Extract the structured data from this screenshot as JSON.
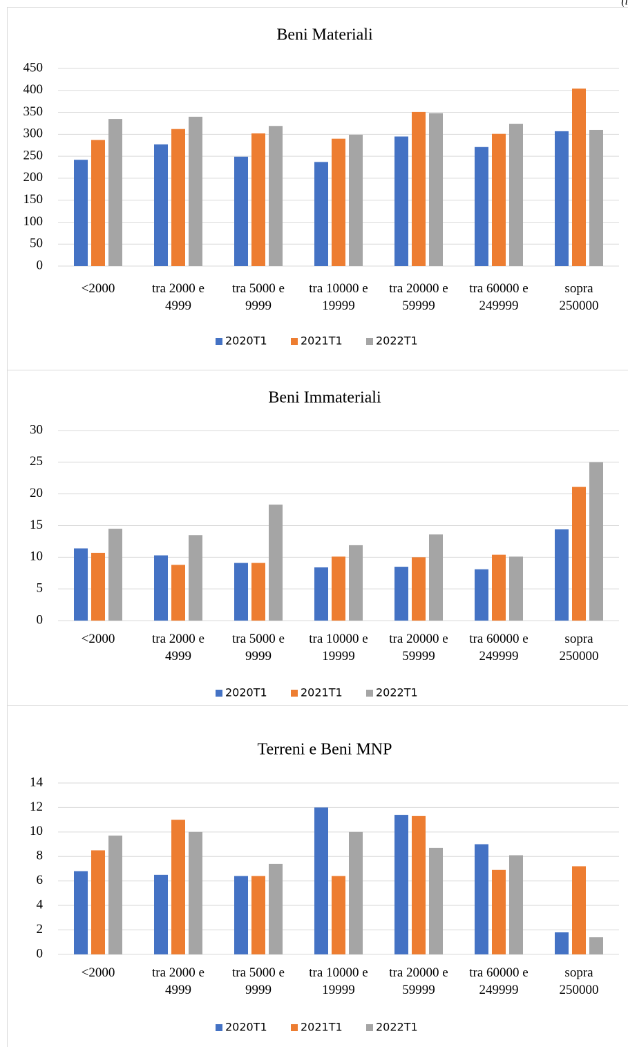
{
  "corner_text": "(i",
  "chart_data": [
    {
      "type": "bar",
      "title": "Beni Materiali",
      "categories": [
        "<2000",
        "tra 2000 e\n4999",
        "tra 5000 e\n9999",
        "tra 10000 e\n19999",
        "tra 20000 e\n59999",
        "tra 60000 e\n249999",
        "sopra\n250000"
      ],
      "series": [
        {
          "name": "2020T1",
          "color": "#4472c4",
          "values": [
            242,
            277,
            249,
            237,
            295,
            271,
            307
          ]
        },
        {
          "name": "2021T1",
          "color": "#ed7d31",
          "values": [
            287,
            312,
            302,
            290,
            351,
            301,
            404
          ]
        },
        {
          "name": "2022T1",
          "color": "#a5a5a5",
          "values": [
            335,
            340,
            319,
            299,
            348,
            324,
            310
          ]
        }
      ],
      "ylim": [
        0,
        450
      ],
      "yticks": [
        0,
        50,
        100,
        150,
        200,
        250,
        300,
        350,
        400,
        450
      ],
      "grid": true,
      "legend": "bottom"
    },
    {
      "type": "bar",
      "title": "Beni Immateriali",
      "categories": [
        "<2000",
        "tra 2000 e\n4999",
        "tra 5000 e\n9999",
        "tra 10000 e\n19999",
        "tra 20000 e\n59999",
        "tra 60000 e\n249999",
        "sopra\n250000"
      ],
      "series": [
        {
          "name": "2020T1",
          "color": "#4472c4",
          "values": [
            11.4,
            10.3,
            9.1,
            8.4,
            8.5,
            8.1,
            14.4
          ]
        },
        {
          "name": "2021T1",
          "color": "#ed7d31",
          "values": [
            10.7,
            8.8,
            9.1,
            10.1,
            10.0,
            10.4,
            21.1
          ]
        },
        {
          "name": "2022T1",
          "color": "#a5a5a5",
          "values": [
            14.5,
            13.5,
            18.3,
            11.9,
            13.6,
            10.1,
            25.0
          ]
        }
      ],
      "ylim": [
        0,
        30
      ],
      "yticks": [
        0,
        5,
        10,
        15,
        20,
        25,
        30
      ],
      "grid": true,
      "legend": "bottom"
    },
    {
      "type": "bar",
      "title": "Terreni e Beni MNP",
      "categories": [
        "<2000",
        "tra 2000 e\n4999",
        "tra 5000 e\n9999",
        "tra 10000 e\n19999",
        "tra 20000 e\n59999",
        "tra 60000 e\n249999",
        "sopra\n250000"
      ],
      "series": [
        {
          "name": "2020T1",
          "color": "#4472c4",
          "values": [
            6.8,
            6.5,
            6.4,
            12.0,
            11.4,
            9.0,
            1.8
          ]
        },
        {
          "name": "2021T1",
          "color": "#ed7d31",
          "values": [
            8.5,
            11.0,
            6.4,
            6.4,
            11.3,
            6.9,
            7.2
          ]
        },
        {
          "name": "2022T1",
          "color": "#a5a5a5",
          "values": [
            9.7,
            10.0,
            7.4,
            10.0,
            8.7,
            8.1,
            1.4
          ]
        }
      ],
      "ylim": [
        0,
        14
      ],
      "yticks": [
        0,
        2,
        4,
        6,
        8,
        10,
        12,
        14
      ],
      "grid": true,
      "legend": "bottom"
    }
  ]
}
